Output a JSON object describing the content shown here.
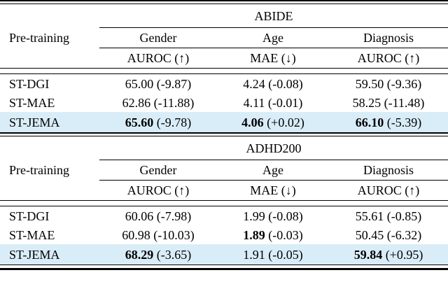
{
  "colors": {
    "highlight_row": "#d9edf8",
    "rule": "#000000",
    "text": "#000000",
    "background": "#ffffff"
  },
  "table": {
    "sections": [
      {
        "dataset": "ABIDE",
        "row_header": "Pre-training",
        "columns": [
          {
            "task": "Gender",
            "metric": "AUROC (↑)"
          },
          {
            "task": "Age",
            "metric": "MAE (↓)"
          },
          {
            "task": "Diagnosis",
            "metric": "AUROC (↑)"
          }
        ],
        "rows": [
          {
            "method": "ST-DGI",
            "highlight": false,
            "cells": [
              {
                "value": "65.00",
                "delta": "(-9.87)",
                "bold": false
              },
              {
                "value": "4.24",
                "delta": "(-0.08)",
                "bold": false
              },
              {
                "value": "59.50",
                "delta": "(-9.36)",
                "bold": false
              }
            ]
          },
          {
            "method": "ST-MAE",
            "highlight": false,
            "cells": [
              {
                "value": "62.86",
                "delta": "(-11.88)",
                "bold": false
              },
              {
                "value": "4.11",
                "delta": "(-0.01)",
                "bold": false
              },
              {
                "value": "58.25",
                "delta": "(-11.48)",
                "bold": false
              }
            ]
          },
          {
            "method": "ST-JEMA",
            "highlight": true,
            "cells": [
              {
                "value": "65.60",
                "delta": "(-9.78)",
                "bold": true
              },
              {
                "value": "4.06",
                "delta": "(+0.02)",
                "bold": true
              },
              {
                "value": "66.10",
                "delta": "(-5.39)",
                "bold": true
              }
            ]
          }
        ]
      },
      {
        "dataset": "ADHD200",
        "row_header": "Pre-training",
        "columns": [
          {
            "task": "Gender",
            "metric": "AUROC (↑)"
          },
          {
            "task": "Age",
            "metric": "MAE (↓)"
          },
          {
            "task": "Diagnosis",
            "metric": "AUROC (↑)"
          }
        ],
        "rows": [
          {
            "method": "ST-DGI",
            "highlight": false,
            "cells": [
              {
                "value": "60.06",
                "delta": "(-7.98)",
                "bold": false
              },
              {
                "value": "1.99",
                "delta": "(-0.08)",
                "bold": false
              },
              {
                "value": "55.61",
                "delta": "(-0.85)",
                "bold": false
              }
            ]
          },
          {
            "method": "ST-MAE",
            "highlight": false,
            "cells": [
              {
                "value": "60.98",
                "delta": "(-10.03)",
                "bold": false
              },
              {
                "value": "1.89",
                "delta": "(-0.03)",
                "bold": true
              },
              {
                "value": "50.45",
                "delta": "(-6.32)",
                "bold": false
              }
            ]
          },
          {
            "method": "ST-JEMA",
            "highlight": true,
            "cells": [
              {
                "value": "68.29",
                "delta": "(-3.65)",
                "bold": true
              },
              {
                "value": "1.91",
                "delta": "(-0.05)",
                "bold": false
              },
              {
                "value": "59.84",
                "delta": "(+0.95)",
                "bold": true
              }
            ]
          }
        ]
      }
    ]
  }
}
